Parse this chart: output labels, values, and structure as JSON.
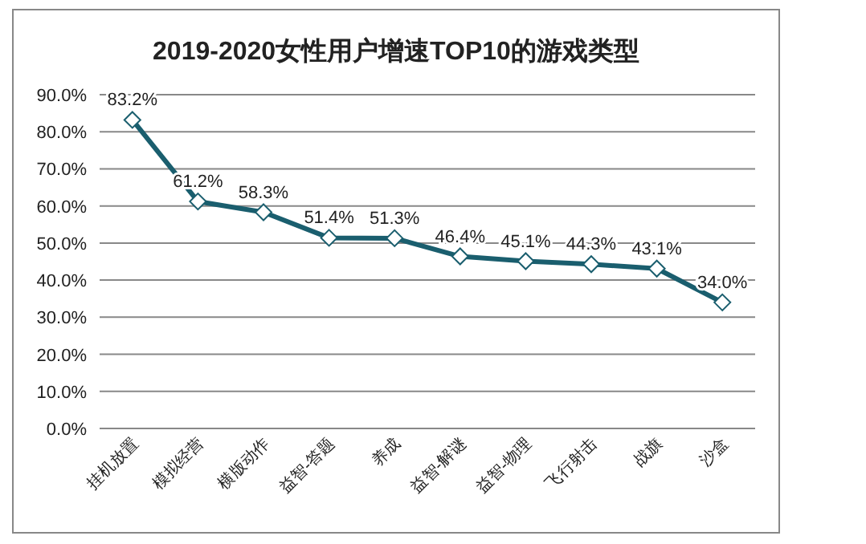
{
  "chart_data": {
    "type": "line",
    "title": "2019-2020女性用户增速TOP10的游戏类型",
    "categories": [
      "挂机放置",
      "模拟经营",
      "横版动作",
      "益智-答题",
      "养成",
      "益智-解谜",
      "益智-物理",
      "飞行射击",
      "战旗",
      "沙盒"
    ],
    "series": [
      {
        "color": "#1a5e6e",
        "values": [
          83.2,
          61.2,
          58.3,
          51.4,
          51.3,
          46.4,
          45.1,
          44.3,
          43.1,
          34.0
        ],
        "value_labels": [
          "83.2%",
          "61.2%",
          "58.3%",
          "51.4%",
          "51.3%",
          "46.4%",
          "45.1%",
          "44.3%",
          "43.1%",
          "34.0%"
        ]
      }
    ],
    "ylim": [
      0,
      90
    ],
    "yticks": [
      {
        "value": 0,
        "label": "0.0%"
      },
      {
        "value": 10,
        "label": "10.0%"
      },
      {
        "value": 20,
        "label": "20.0%"
      },
      {
        "value": 30,
        "label": "30.0%"
      },
      {
        "value": 40,
        "label": "40.0%"
      },
      {
        "value": 50,
        "label": "50.0%"
      },
      {
        "value": 60,
        "label": "60.0%"
      },
      {
        "value": 70,
        "label": "70.0%"
      },
      {
        "value": 80,
        "label": "80.0%"
      },
      {
        "value": 90,
        "label": "90.0%"
      }
    ],
    "grid": "y",
    "marker": "diamond",
    "line_style": "solid"
  }
}
